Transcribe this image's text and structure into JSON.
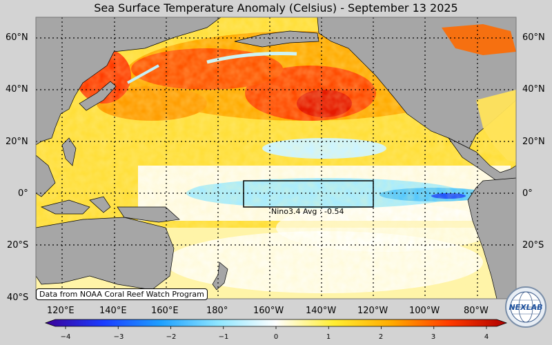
{
  "title": "Sea Surface Temperature Anomaly (Celsius) - September 13 2025",
  "lat_labels": [
    "60°N",
    "40°N",
    "20°N",
    "0°",
    "20°S",
    "40°S"
  ],
  "lon_labels": [
    "120°E",
    "140°E",
    "160°E",
    "180°",
    "160°W",
    "140°W",
    "120°W",
    "100°W",
    "80°W"
  ],
  "colorbar": {
    "ticks": [
      "−4",
      "−3",
      "−2",
      "−1",
      "0",
      "1",
      "2",
      "3",
      "4"
    ],
    "colors": [
      "#3b0099",
      "#1a3cff",
      "#1ea0ff",
      "#8fe6ff",
      "#ffffff",
      "#ffee33",
      "#ffab00",
      "#ff3c00",
      "#b00000"
    ]
  },
  "region": {
    "name": "Nino3.4",
    "label": "Nino3.4 Avg : -0.54",
    "value": -0.54
  },
  "credit": "Data from NOAA Coral Reef Watch Program",
  "logo": {
    "text": "NEXLAB",
    "icon": "nexlab-globe-logo"
  }
}
